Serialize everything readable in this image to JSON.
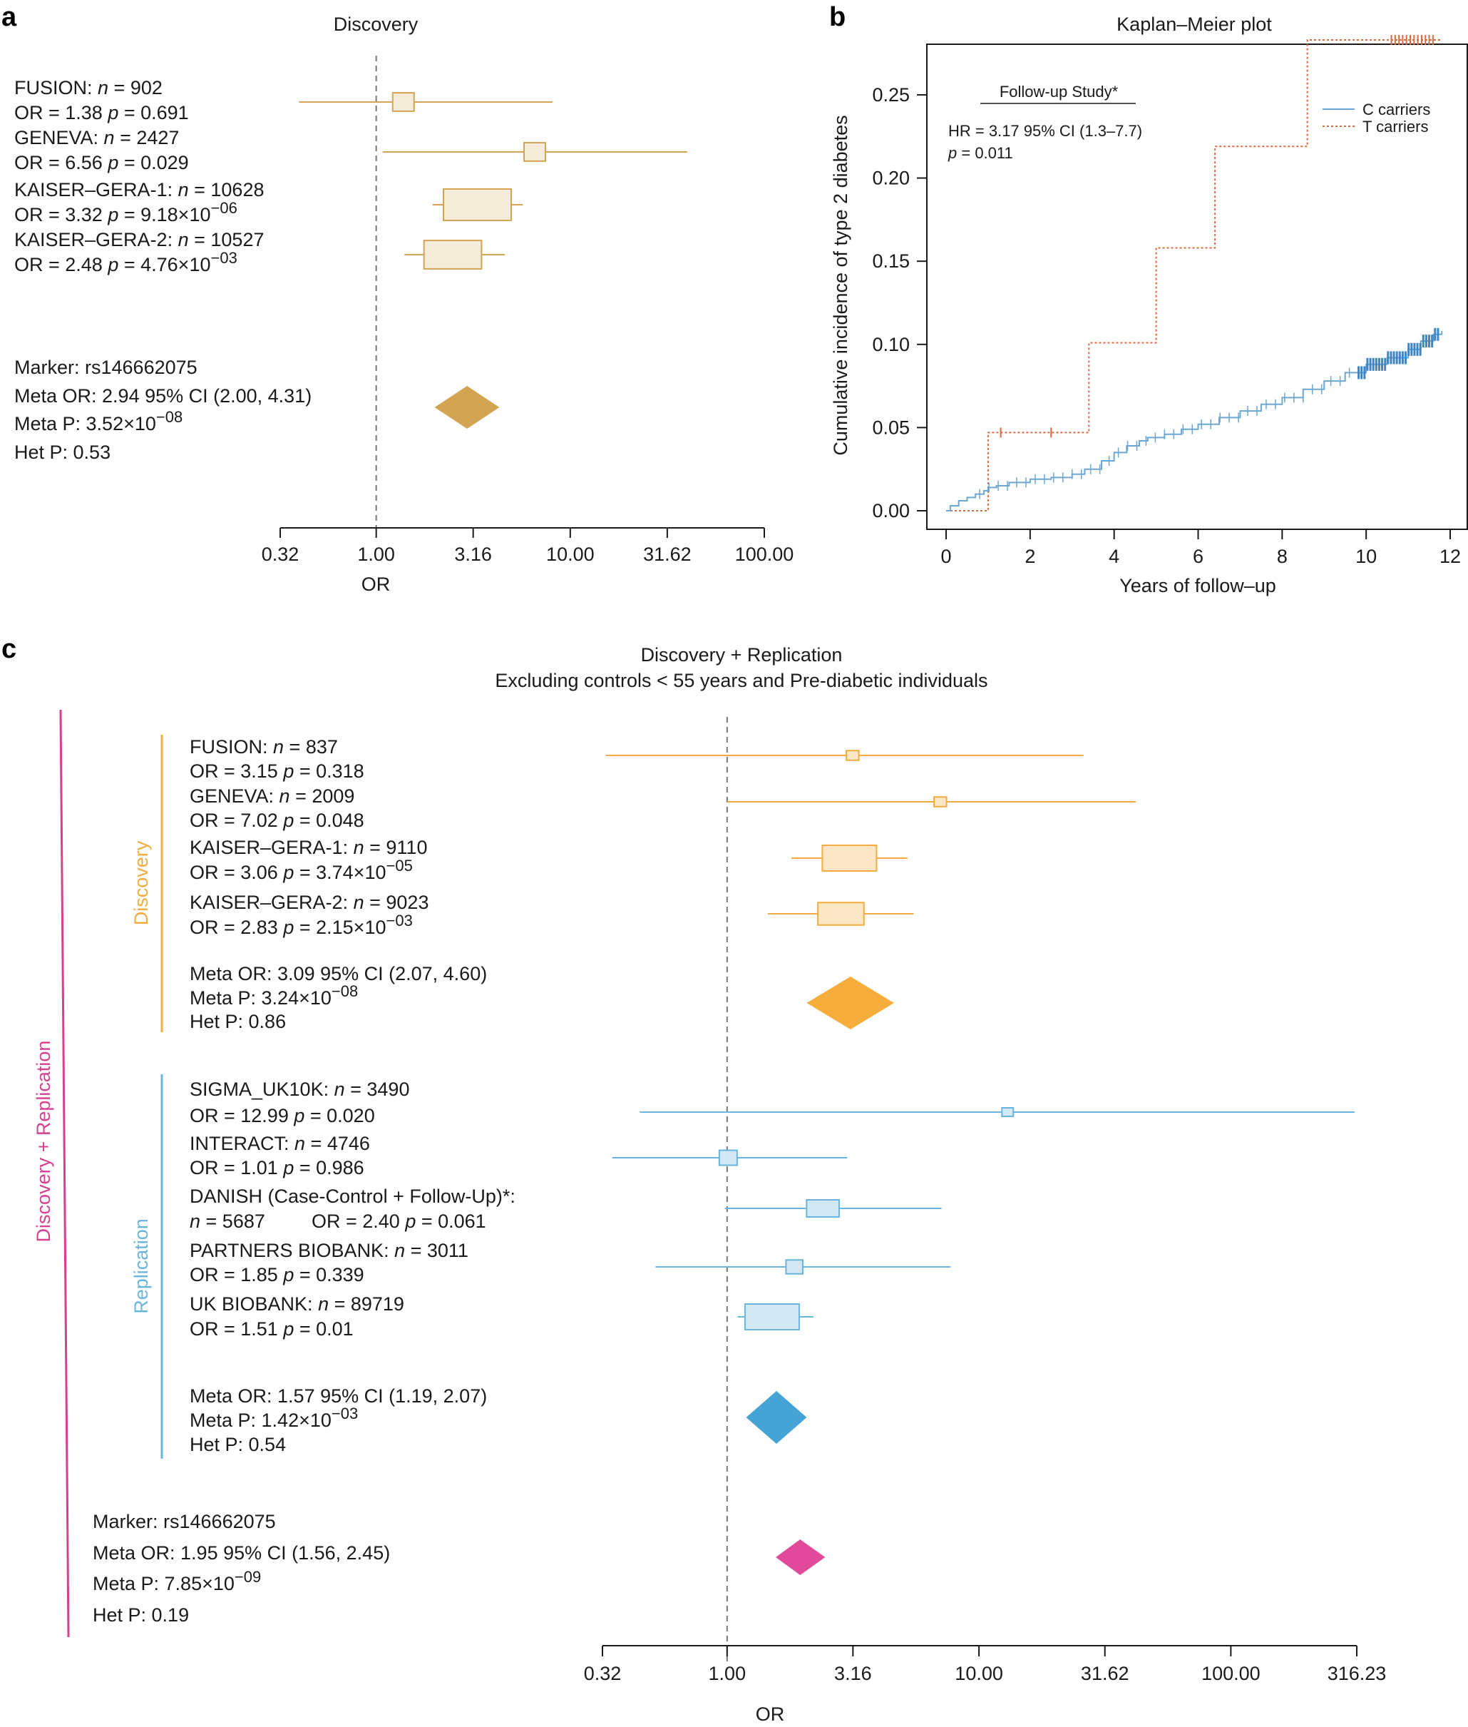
{
  "chart_data": [
    {
      "panel": "a",
      "type": "forest",
      "title": "Discovery",
      "xlabel": "OR",
      "xscale": "log10",
      "xlim": [
        0.32,
        100
      ],
      "ticks": [
        "0.32",
        "1.00",
        "3.16",
        "10.00",
        "31.62",
        "100.00"
      ],
      "color": "#d3a451",
      "studies": [
        {
          "name": "FUSION:",
          "n": "902",
          "or_label": "OR = 1.38",
          "p_label": "0.691",
          "p_exp": "",
          "or": 1.38,
          "lo": 0.4,
          "hi": 8.1,
          "weight": 0.35
        },
        {
          "name": "GENEVA:",
          "n": "2427",
          "or_label": "OR = 6.56",
          "p_label": "0.029",
          "p_exp": "",
          "or": 6.56,
          "lo": 1.08,
          "hi": 40.0,
          "weight": 0.35
        },
        {
          "name": "KAISER–GERA-1:",
          "n": "10628",
          "or_label": "OR = 3.32",
          "p_label": "9.18×10",
          "p_exp": "−06",
          "or": 3.32,
          "lo": 1.95,
          "hi": 5.7,
          "weight": 1.0
        },
        {
          "name": "KAISER–GERA-2:",
          "n": "10527",
          "or_label": "OR = 2.48",
          "p_label": "4.76×10",
          "p_exp": "−03",
          "or": 2.48,
          "lo": 1.4,
          "hi": 4.6,
          "weight": 0.85
        }
      ],
      "summary": {
        "marker": "Marker: rs146662075",
        "meta_or": "Meta OR: 2.94 95% CI (2.00, 4.31)",
        "meta_p": "Meta P: 3.52×10",
        "meta_p_exp": "−08",
        "het_p": "Het P: 0.53",
        "or": 2.94,
        "lo": 2.0,
        "hi": 4.31
      }
    },
    {
      "panel": "b",
      "type": "line",
      "title": "Kaplan–Meier plot",
      "xlabel": "Years of follow–up",
      "ylabel": "Cumulative incidence of type 2 diabetes",
      "xlim": [
        0,
        12
      ],
      "ylim": [
        0,
        0.28
      ],
      "xticks": [
        "0",
        "2",
        "4",
        "6",
        "8",
        "10",
        "12"
      ],
      "yticks": [
        "0.00",
        "0.05",
        "0.10",
        "0.15",
        "0.20",
        "0.25"
      ],
      "annotation": {
        "heading": "Follow-up Study*",
        "hr": "HR = 3.17 95% CI (1.3–7.7)",
        "p_italic": "p",
        "p_rest": " = 0.011"
      },
      "legend": [
        {
          "label": "C carriers",
          "color": "#6ba7d2"
        },
        {
          "label": "T carriers",
          "color": "#e0683f"
        }
      ],
      "series": [
        {
          "name": "C carriers",
          "color": "#6ba7d2",
          "x": [
            0.0,
            0.1,
            0.3,
            0.5,
            0.7,
            0.9,
            1.0,
            1.2,
            1.5,
            2.0,
            2.5,
            3.0,
            3.3,
            3.7,
            4.0,
            4.3,
            4.6,
            4.8,
            5.2,
            5.6,
            6.0,
            6.5,
            7.0,
            7.5,
            8.0,
            8.5,
            9.0,
            9.5,
            10.0,
            10.5,
            11.0,
            11.3,
            11.6,
            11.8
          ],
          "y": [
            0.0,
            0.003,
            0.006,
            0.008,
            0.01,
            0.012,
            0.014,
            0.015,
            0.017,
            0.019,
            0.02,
            0.022,
            0.025,
            0.03,
            0.035,
            0.039,
            0.042,
            0.044,
            0.046,
            0.049,
            0.052,
            0.056,
            0.06,
            0.064,
            0.068,
            0.073,
            0.078,
            0.083,
            0.088,
            0.092,
            0.097,
            0.102,
            0.106,
            0.108
          ]
        },
        {
          "name": "T carriers",
          "color": "#e0683f",
          "step": true,
          "x": [
            0.0,
            1.0,
            3.4,
            5.0,
            6.4,
            8.6,
            11.8
          ],
          "y": [
            0.0,
            0.047,
            0.101,
            0.158,
            0.219,
            0.283,
            0.283
          ]
        }
      ]
    },
    {
      "panel": "c",
      "type": "forest",
      "title_line1": "Discovery + Replication",
      "title_line2": "Excluding controls < 55 years and Pre-diabetic individuals",
      "xlabel": "OR",
      "xscale": "log10",
      "xlim": [
        0.32,
        316.23
      ],
      "ticks": [
        "0.32",
        "1.00",
        "3.16",
        "10.00",
        "31.62",
        "100.00",
        "316.23"
      ],
      "outer_group": {
        "label": "Discovery + Replication",
        "color": "#d6408f"
      },
      "groups": [
        {
          "label": "Discovery",
          "color": "#f2ac3f",
          "studies": [
            {
              "name": "FUSION:",
              "n": "837",
              "or_label": "OR = 3.15",
              "p_label": "0.318",
              "p_exp": "",
              "or": 3.15,
              "lo": 0.33,
              "hi": 26.0,
              "weight": 0.25
            },
            {
              "name": "GENEVA:",
              "n": "2009",
              "or_label": "OR = 7.02",
              "p_label": "0.048",
              "p_exp": "",
              "or": 7.02,
              "lo": 1.0,
              "hi": 42.0,
              "weight": 0.25
            },
            {
              "name": "KAISER–GERA-1:",
              "n": "9110",
              "or_label": "OR = 3.06",
              "p_label": "3.74×10",
              "p_exp": "−05",
              "or": 3.06,
              "lo": 1.8,
              "hi": 5.2,
              "weight": 1.0
            },
            {
              "name": "KAISER–GERA-2:",
              "n": "9023",
              "or_label": "OR = 2.83",
              "p_label": "2.15×10",
              "p_exp": "−03",
              "or": 2.83,
              "lo": 1.45,
              "hi": 5.5,
              "weight": 0.85
            }
          ],
          "summary": {
            "meta_or": "Meta OR: 3.09 95% CI (2.07, 4.60)",
            "meta_p": "Meta P: 3.24×10",
            "meta_p_exp": "−08",
            "het_p": "Het P: 0.86",
            "or": 3.09,
            "lo": 2.07,
            "hi": 4.6
          }
        },
        {
          "label": "Replication",
          "color": "#6ab5dc",
          "studies": [
            {
              "name": "SIGMA_UK10K:",
              "n": "3490",
              "or_label": "OR = 12.99",
              "p_label": "0.020",
              "p_exp": "",
              "or": 12.99,
              "lo": 0.45,
              "hi": 310.0,
              "weight": 0.2
            },
            {
              "name": "INTERACT:",
              "n": "4746",
              "or_label": "OR = 1.01",
              "p_label": "0.986",
              "p_exp": "",
              "or": 1.01,
              "lo": 0.35,
              "hi": 3.0,
              "weight": 0.5
            },
            {
              "name": "DANISH (Case-Control + Follow-Up)*:",
              "n": "5687",
              "or_label": "OR = 2.40",
              "p_label": "0.061",
              "p_exp": "",
              "or": 2.4,
              "lo": 0.98,
              "hi": 7.1,
              "weight": 0.6,
              "two_line": true
            },
            {
              "name": "PARTNERS BIOBANK:",
              "n": "3011",
              "or_label": "OR = 1.85",
              "p_label": "0.339",
              "p_exp": "",
              "or": 1.85,
              "lo": 0.52,
              "hi": 7.7,
              "weight": 0.45
            },
            {
              "name": "UK BIOBANK:",
              "n": "89719",
              "or_label": "OR = 1.51",
              "p_label": "0.01",
              "p_exp": "",
              "or": 1.51,
              "lo": 1.1,
              "hi": 2.2,
              "weight": 1.0
            }
          ],
          "summary": {
            "meta_or": "Meta OR: 1.57 95% CI (1.19, 2.07)",
            "meta_p": "Meta P: 1.42×10",
            "meta_p_exp": "−03",
            "het_p": "Het P: 0.54",
            "or": 1.57,
            "lo": 1.19,
            "hi": 2.07
          }
        }
      ],
      "overall": {
        "marker": "Marker: rs146662075",
        "meta_or": "Meta OR: 1.95 95% CI (1.56, 2.45)",
        "meta_p": "Meta P:  7.85×10",
        "meta_p_exp": "−09",
        "het_p": "Het P: 0.19",
        "or": 1.95,
        "lo": 1.56,
        "hi": 2.45,
        "color": "#e14a9b"
      }
    }
  ]
}
